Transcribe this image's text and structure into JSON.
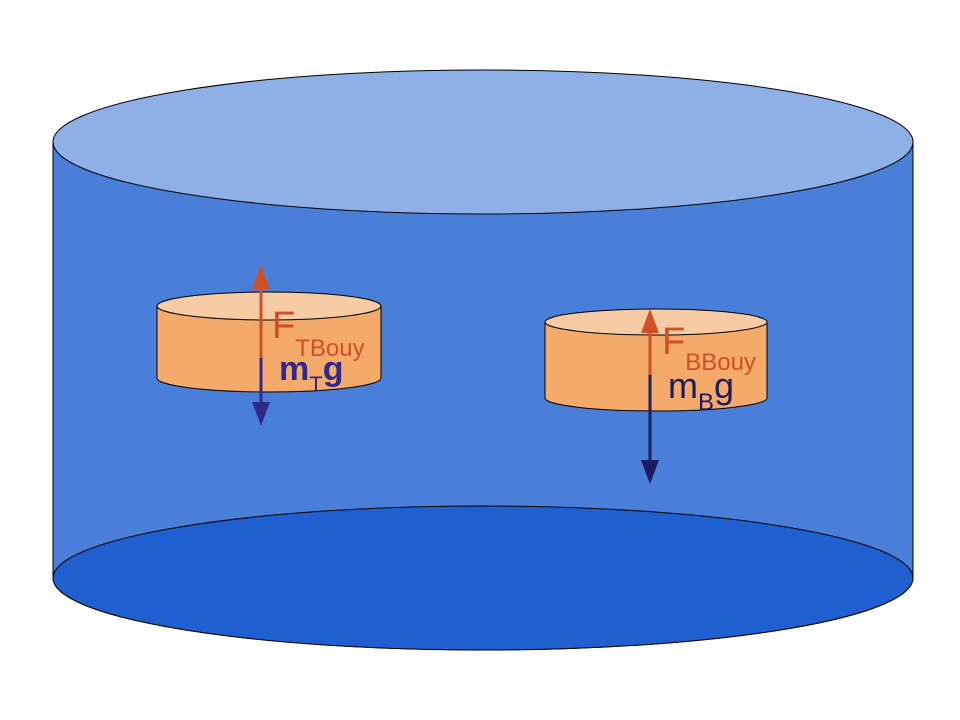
{
  "colors": {
    "tank_body": "#4a7fd9",
    "tank_top": "#8fb0e6",
    "tank_bottom": "#1f5fcf",
    "outline": "#000000",
    "block_side": "#f4aa6b",
    "block_top": "#f7cba3",
    "buoyancy_arrow": "#cf4f27",
    "weight_arrow_top": "#2f2a8c",
    "weight_arrow_bottom": "#1c1d5e"
  },
  "top_block": {
    "buoyancy": {
      "main": "F",
      "sub": "TBouy"
    },
    "weight": {
      "main": "m",
      "sub": "T",
      "tail": "g"
    }
  },
  "bottom_block": {
    "buoyancy": {
      "main": "F",
      "sub": "BBouy"
    },
    "weight": {
      "main": "m",
      "sub": "B",
      "tail": "g"
    }
  }
}
